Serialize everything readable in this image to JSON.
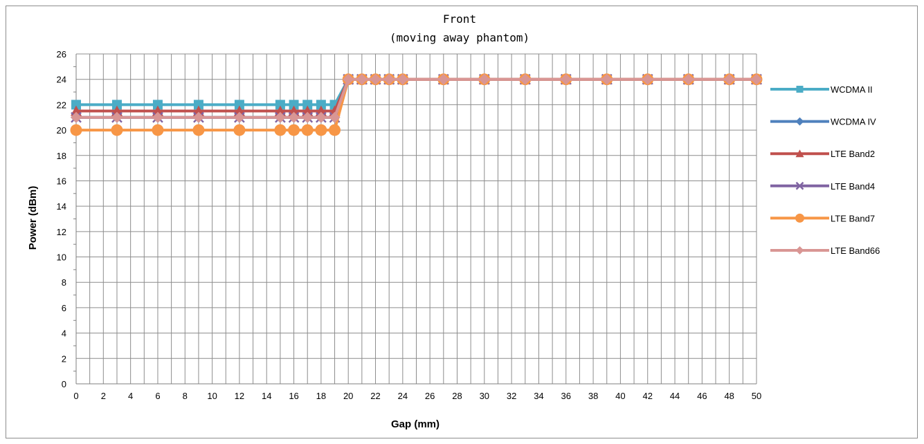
{
  "chart_data": {
    "type": "line",
    "title": "Front",
    "subtitle": "(moving away phantom)",
    "xlabel": "Gap (mm)",
    "ylabel": "Power (dBm)",
    "xlim": [
      0,
      50
    ],
    "ylim": [
      0,
      26
    ],
    "x_ticks": [
      0,
      2,
      4,
      6,
      8,
      10,
      12,
      14,
      16,
      18,
      20,
      22,
      24,
      26,
      28,
      30,
      32,
      34,
      36,
      38,
      40,
      42,
      44,
      46,
      48,
      50
    ],
    "y_ticks": [
      0,
      2,
      4,
      6,
      8,
      10,
      12,
      14,
      16,
      18,
      20,
      22,
      24,
      26
    ],
    "grid": true,
    "legend_position": "right",
    "x": [
      0,
      3,
      6,
      9,
      12,
      15,
      16,
      17,
      18,
      19,
      20,
      21,
      22,
      23,
      24,
      27,
      30,
      33,
      36,
      39,
      42,
      45,
      48,
      50
    ],
    "series": [
      {
        "name": "WCDMA II",
        "color": "#4BACC6",
        "marker": "square",
        "values": [
          22,
          22,
          22,
          22,
          22,
          22,
          22,
          22,
          22,
          22,
          24,
          24,
          24,
          24,
          24,
          24,
          24,
          24,
          24,
          24,
          24,
          24,
          24,
          24
        ]
      },
      {
        "name": "WCDMA IV",
        "color": "#4F81BD",
        "marker": "diamond",
        "values": [
          21,
          21,
          21,
          21,
          21,
          21,
          21,
          21,
          21,
          21,
          24,
          24,
          24,
          24,
          24,
          24,
          24,
          24,
          24,
          24,
          24,
          24,
          24,
          24
        ]
      },
      {
        "name": "LTE Band2",
        "color": "#C0504D",
        "marker": "triangle",
        "values": [
          21.5,
          21.5,
          21.5,
          21.5,
          21.5,
          21.5,
          21.5,
          21.5,
          21.5,
          21.5,
          24,
          24,
          24,
          24,
          24,
          24,
          24,
          24,
          24,
          24,
          24,
          24,
          24,
          24
        ]
      },
      {
        "name": "LTE Band4",
        "color": "#8064A2",
        "marker": "x",
        "values": [
          21,
          21,
          21,
          21,
          21,
          21,
          21,
          21,
          21,
          21,
          24,
          24,
          24,
          24,
          24,
          24,
          24,
          24,
          24,
          24,
          24,
          24,
          24,
          24
        ]
      },
      {
        "name": "LTE Band7",
        "color": "#F79646",
        "marker": "circle",
        "values": [
          20,
          20,
          20,
          20,
          20,
          20,
          20,
          20,
          20,
          20,
          24,
          24,
          24,
          24,
          24,
          24,
          24,
          24,
          24,
          24,
          24,
          24,
          24,
          24
        ]
      },
      {
        "name": "LTE Band66",
        "color": "#D99694",
        "marker": "diamond",
        "values": [
          21,
          21,
          21,
          21,
          21,
          21,
          21,
          21,
          21,
          21,
          24,
          24,
          24,
          24,
          24,
          24,
          24,
          24,
          24,
          24,
          24,
          24,
          24,
          24
        ]
      }
    ]
  }
}
